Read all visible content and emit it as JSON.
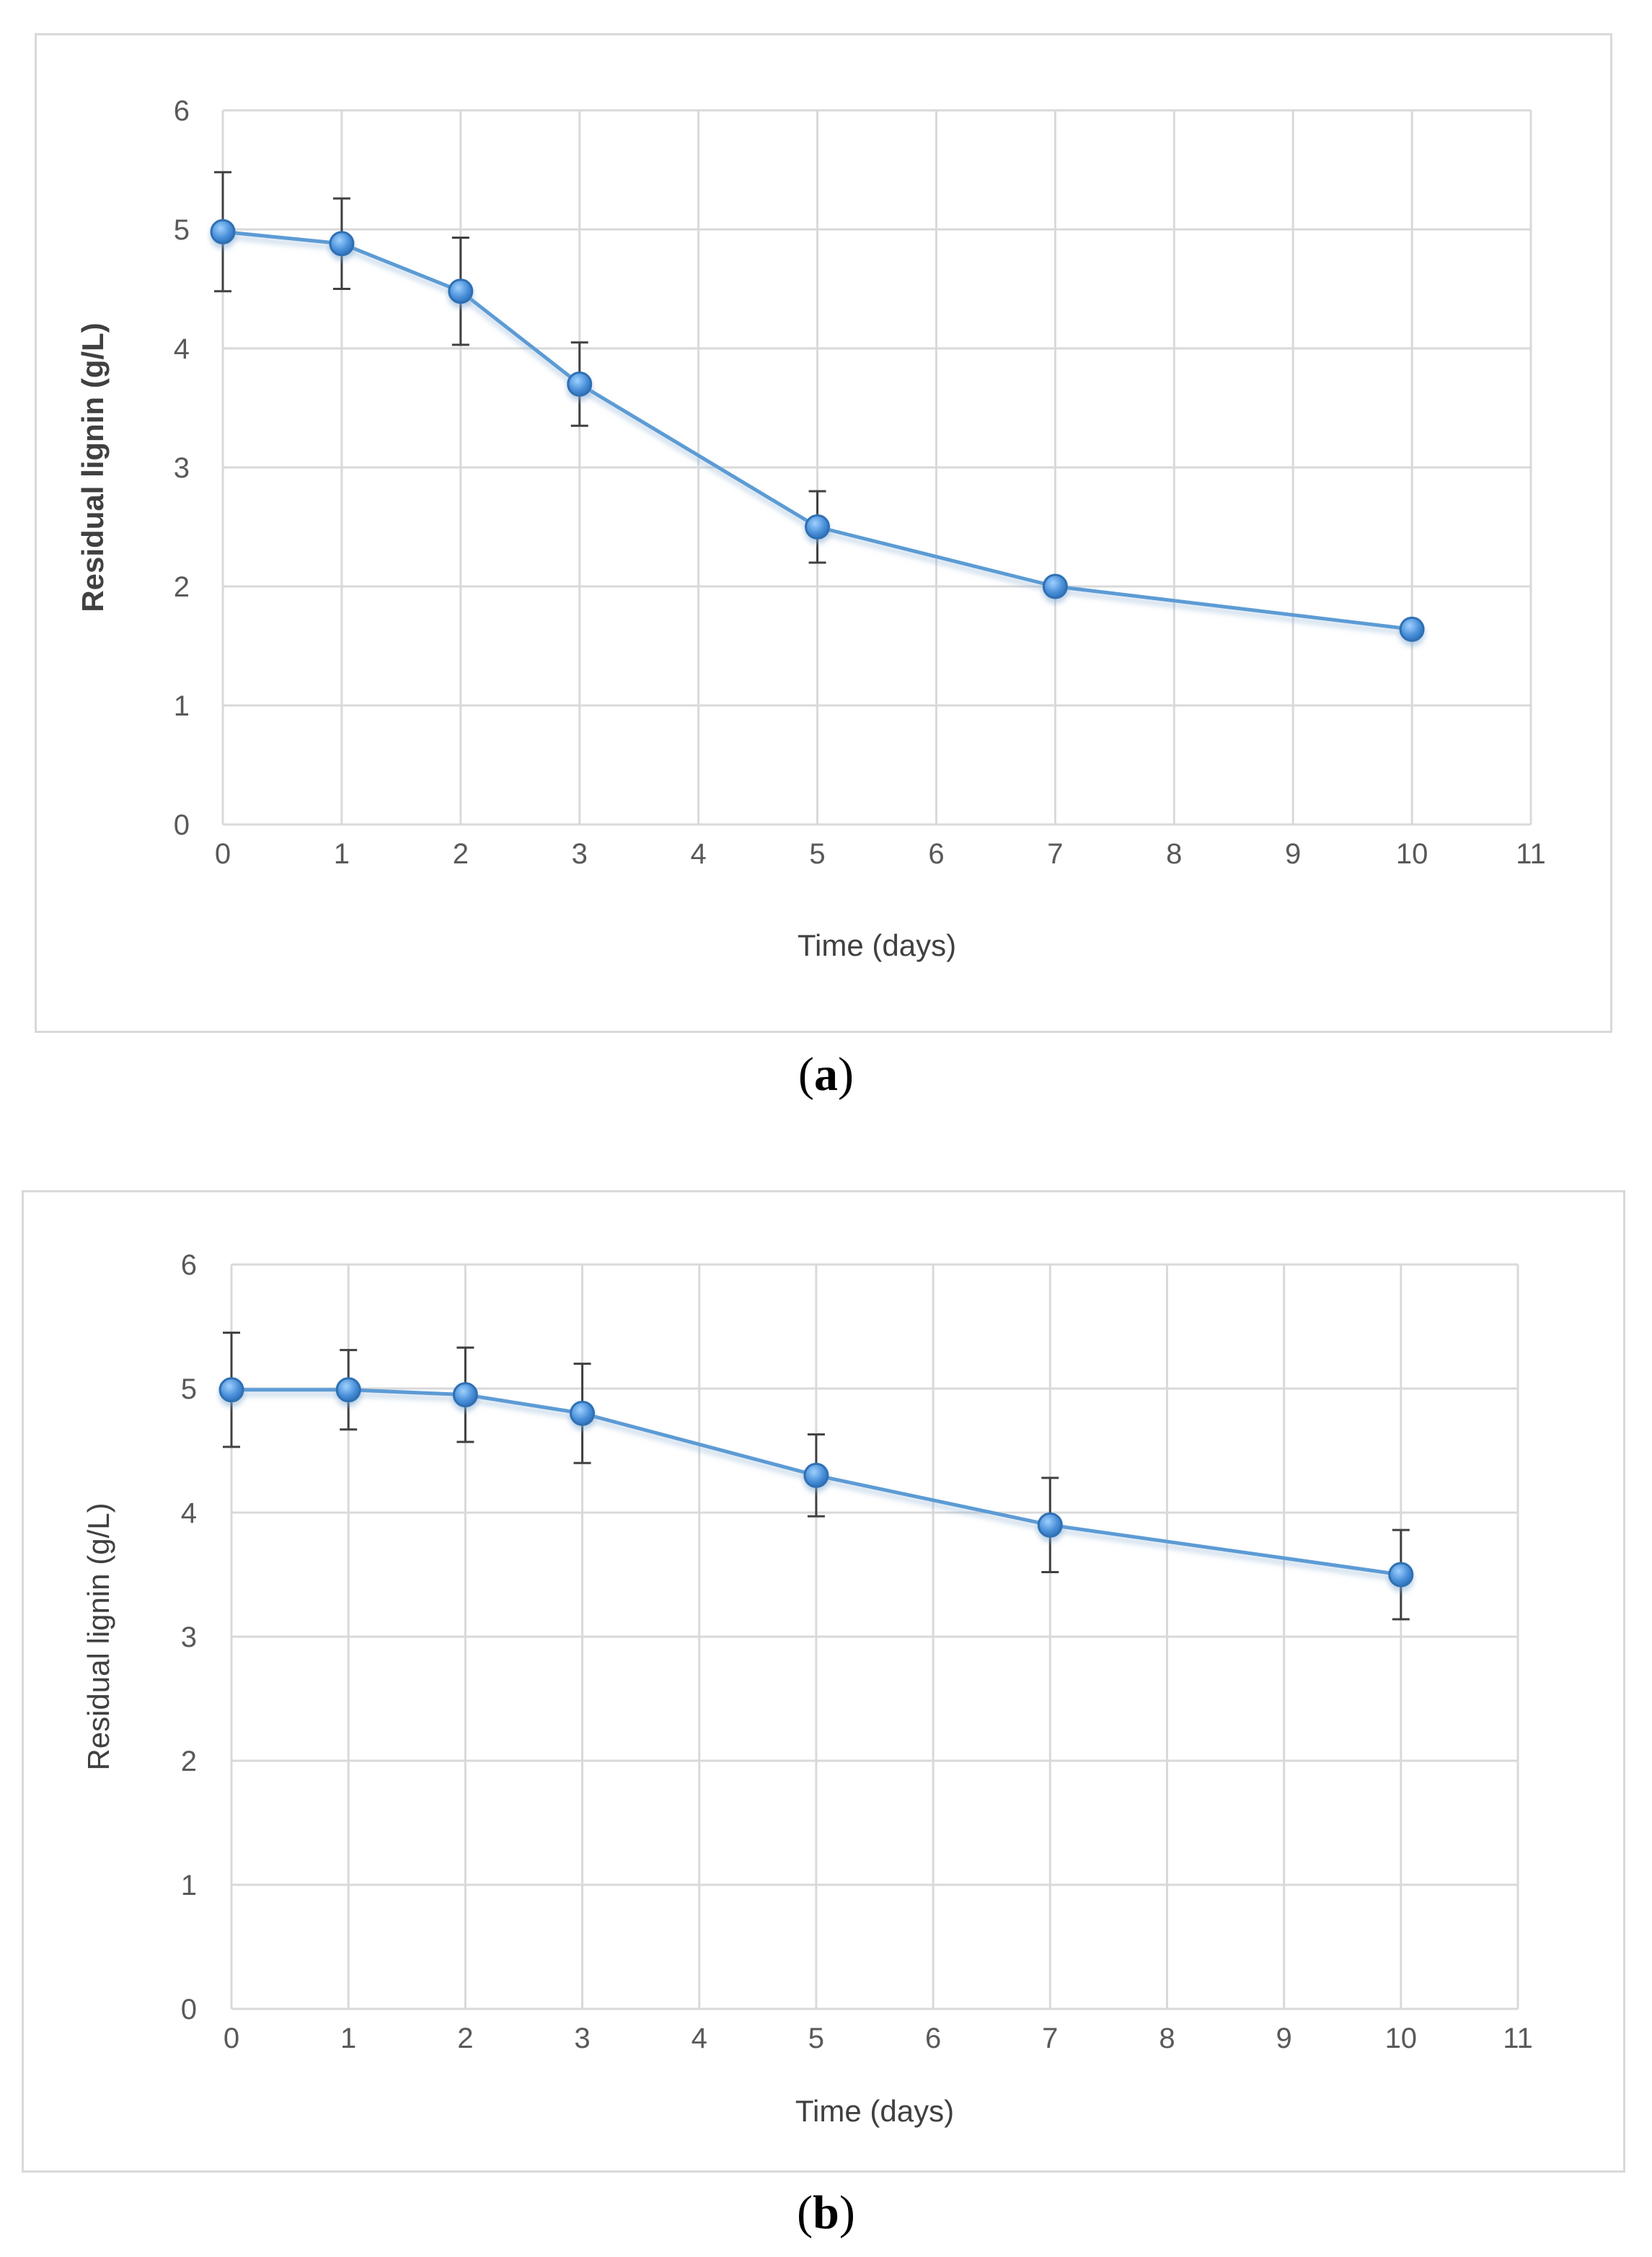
{
  "chart_data": [
    {
      "type": "line",
      "panel_label": "a",
      "xlabel": "Time (days)",
      "ylabel": "Residual lignin (g/L)",
      "xlim": [
        0,
        11
      ],
      "ylim": [
        0,
        6
      ],
      "x_ticks": [
        0,
        1,
        2,
        3,
        4,
        5,
        6,
        7,
        8,
        9,
        10,
        11
      ],
      "y_ticks": [
        0,
        1,
        2,
        3,
        4,
        5,
        6
      ],
      "grid": true,
      "series": [
        {
          "name": "Residual lignin",
          "color": "#5b9bd5",
          "x": [
            0,
            1,
            2,
            3,
            5,
            7,
            10
          ],
          "y": [
            4.98,
            4.88,
            4.48,
            3.7,
            2.5,
            2.0,
            1.64
          ],
          "error": [
            0.5,
            0.38,
            0.45,
            0.35,
            0.3,
            0,
            0
          ]
        }
      ]
    },
    {
      "type": "line",
      "panel_label": "b",
      "xlabel": "Time (days)",
      "ylabel": "Residual lignin (g/L)",
      "xlim": [
        0,
        11
      ],
      "ylim": [
        0,
        6
      ],
      "x_ticks": [
        0,
        1,
        2,
        3,
        4,
        5,
        6,
        7,
        8,
        9,
        10,
        11
      ],
      "y_ticks": [
        0,
        1,
        2,
        3,
        4,
        5,
        6
      ],
      "grid": true,
      "series": [
        {
          "name": "Residual lignin",
          "color": "#5b9bd5",
          "x": [
            0,
            1,
            2,
            3,
            5,
            7,
            10
          ],
          "y": [
            4.99,
            4.99,
            4.95,
            4.8,
            4.3,
            3.9,
            3.5
          ],
          "error": [
            0.46,
            0.32,
            0.38,
            0.4,
            0.33,
            0.38,
            0.36
          ]
        }
      ]
    }
  ]
}
